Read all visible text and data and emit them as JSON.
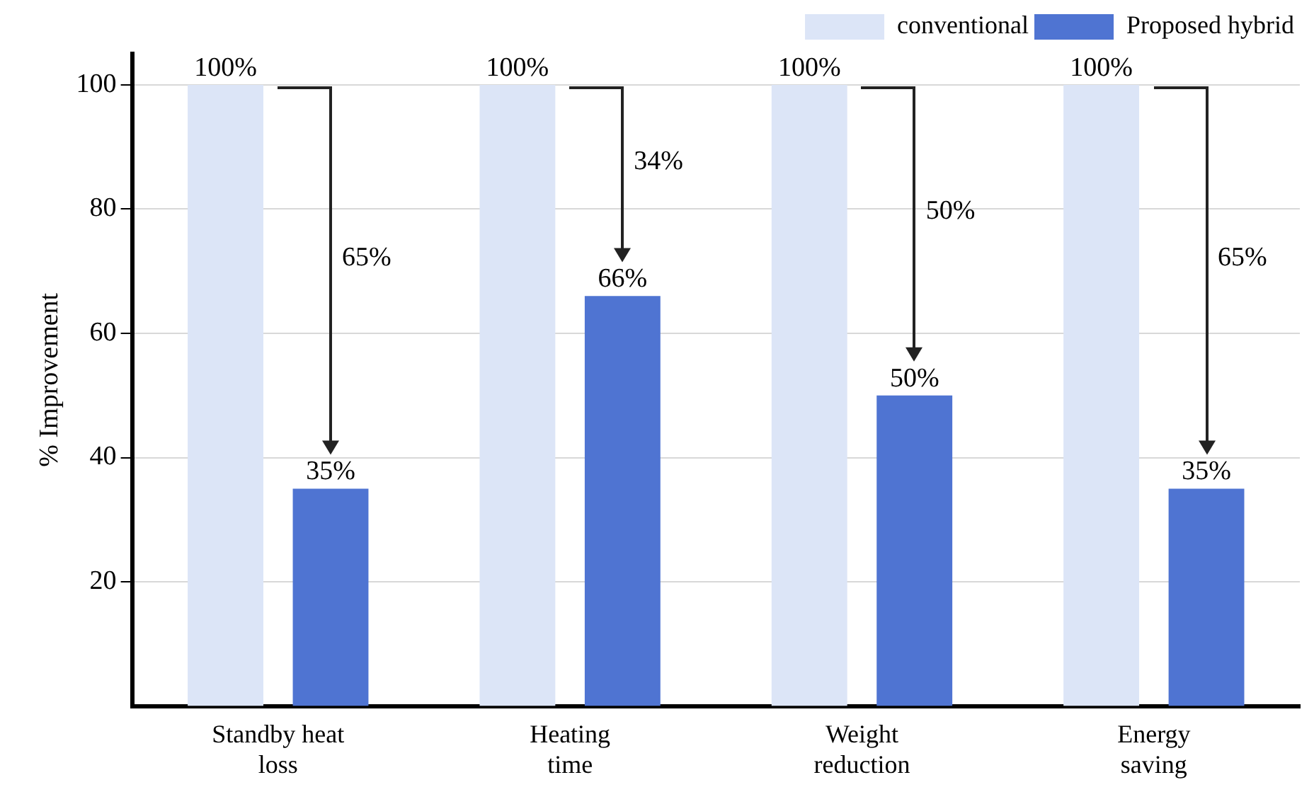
{
  "chart_data": {
    "type": "bar",
    "ylabel": "% Improvement",
    "categories": [
      "Standby heat loss",
      "Heating time",
      "Weight reduction",
      "Energy saving"
    ],
    "series": [
      {
        "name": "conventional",
        "color": "#dce5f7",
        "values": [
          100,
          100,
          100,
          100
        ],
        "value_labels": [
          "100%",
          "100%",
          "100%",
          "100%"
        ]
      },
      {
        "name": "Proposed hybrid",
        "color": "#4f74d2",
        "values": [
          35,
          66,
          50,
          35
        ],
        "value_labels": [
          "35%",
          "66%",
          "50%",
          "35%"
        ]
      }
    ],
    "annotations": [
      "65%",
      "34%",
      "50%",
      "65%"
    ],
    "ylim": [
      0,
      105
    ],
    "yticks": [
      20,
      40,
      60,
      80,
      100
    ],
    "grid": "y",
    "legend": "top right"
  }
}
